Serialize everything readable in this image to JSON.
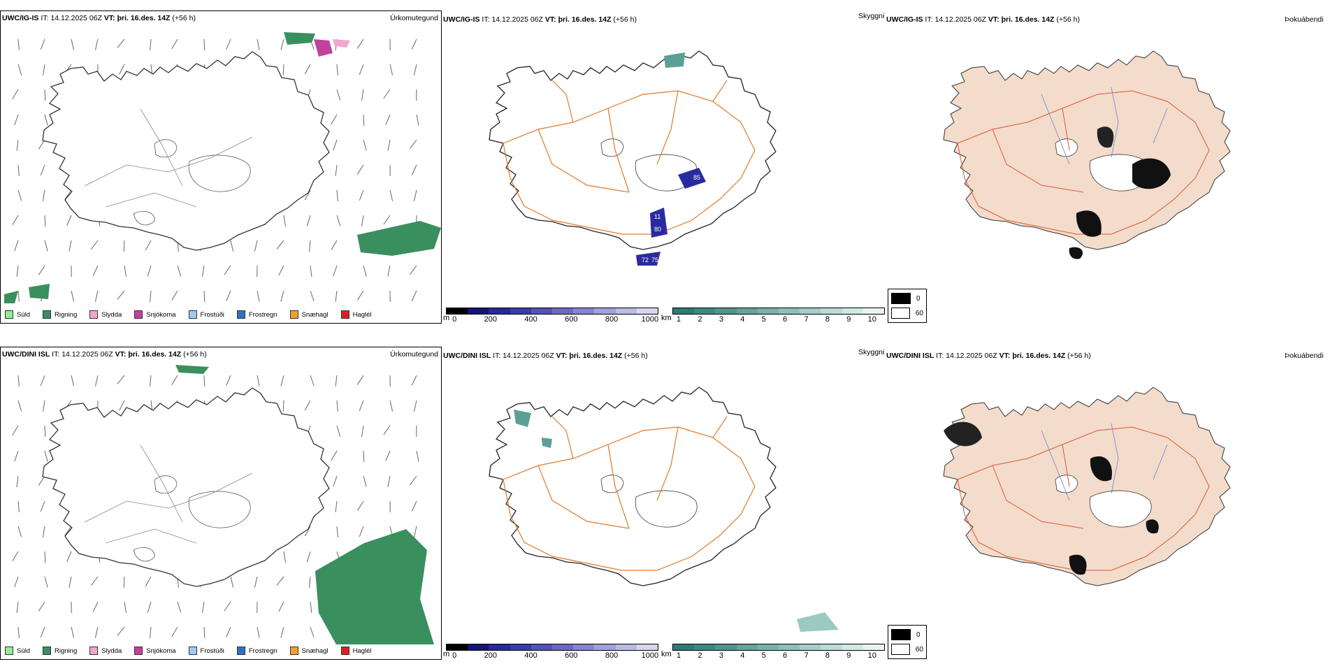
{
  "rows": [
    {
      "model": "UWC/IG-IS",
      "it_label": "IT:",
      "it_value": "14.12.2025 06Z",
      "vt_label": "VT:",
      "vt_value": "þri. 16.des. 14Z",
      "lead": "(+56 h)"
    },
    {
      "model": "UWC/DINI ISL",
      "it_label": "IT:",
      "it_value": "14.12.2025 06Z",
      "vt_label": "VT:",
      "vt_value": "þri. 16.des. 14Z",
      "lead": "(+56 h)"
    }
  ],
  "panel_titles": {
    "precip": "Úrkomutegund",
    "visibility": "Skyggni",
    "fog": "Þokuábendi"
  },
  "precip_legend": [
    {
      "label": "Súld",
      "color": "#90ee90"
    },
    {
      "label": "Rigning",
      "color": "#3a8f5f"
    },
    {
      "label": "Slydda",
      "color": "#f2a6d0"
    },
    {
      "label": "Snjókoma",
      "color": "#c2419b"
    },
    {
      "label": "Frostúði",
      "color": "#9ec9f2"
    },
    {
      "label": "Frostregn",
      "color": "#2f72c4"
    },
    {
      "label": "Snæhagl",
      "color": "#f0a030"
    },
    {
      "label": "Haglél",
      "color": "#e02020"
    }
  ],
  "ceiling_scale": {
    "unit": "m",
    "ticks": [
      "0",
      "200",
      "400",
      "600",
      "800",
      "1000"
    ],
    "colors": [
      "#000000",
      "#151575",
      "#28289a",
      "#3a3ab0",
      "#5252bb",
      "#6a6ac6",
      "#8585d2",
      "#a0a0dc",
      "#bbbbe6",
      "#d6d6f0"
    ]
  },
  "visibility_scale": {
    "unit": "km",
    "ticks": [
      "1",
      "2",
      "3",
      "4",
      "5",
      "6",
      "7",
      "8",
      "9",
      "10"
    ],
    "colors": [
      "#2d7b74",
      "#3e8880",
      "#52958d",
      "#66a39b",
      "#7bb1a9",
      "#90bfb8",
      "#a6cdc7",
      "#bcdbd6",
      "#d2e9e5",
      "#e8f4f2"
    ]
  },
  "fog_legend": [
    {
      "label": "0",
      "color": "#000000"
    },
    {
      "label": "60",
      "color": "#ffffff"
    }
  ],
  "map_labels": [
    "85",
    "11",
    "80",
    "72",
    "75"
  ],
  "colors": {
    "rain": "#3a8f5f",
    "snow": "#c2419b",
    "sleet": "#f2a6d0",
    "roads": "#e07a2a",
    "land_fog": "#f3dccb",
    "fog_roads": "#e2552f",
    "rivers": "#6f7fe0",
    "ceiling_blue": "#2a2aa0"
  }
}
